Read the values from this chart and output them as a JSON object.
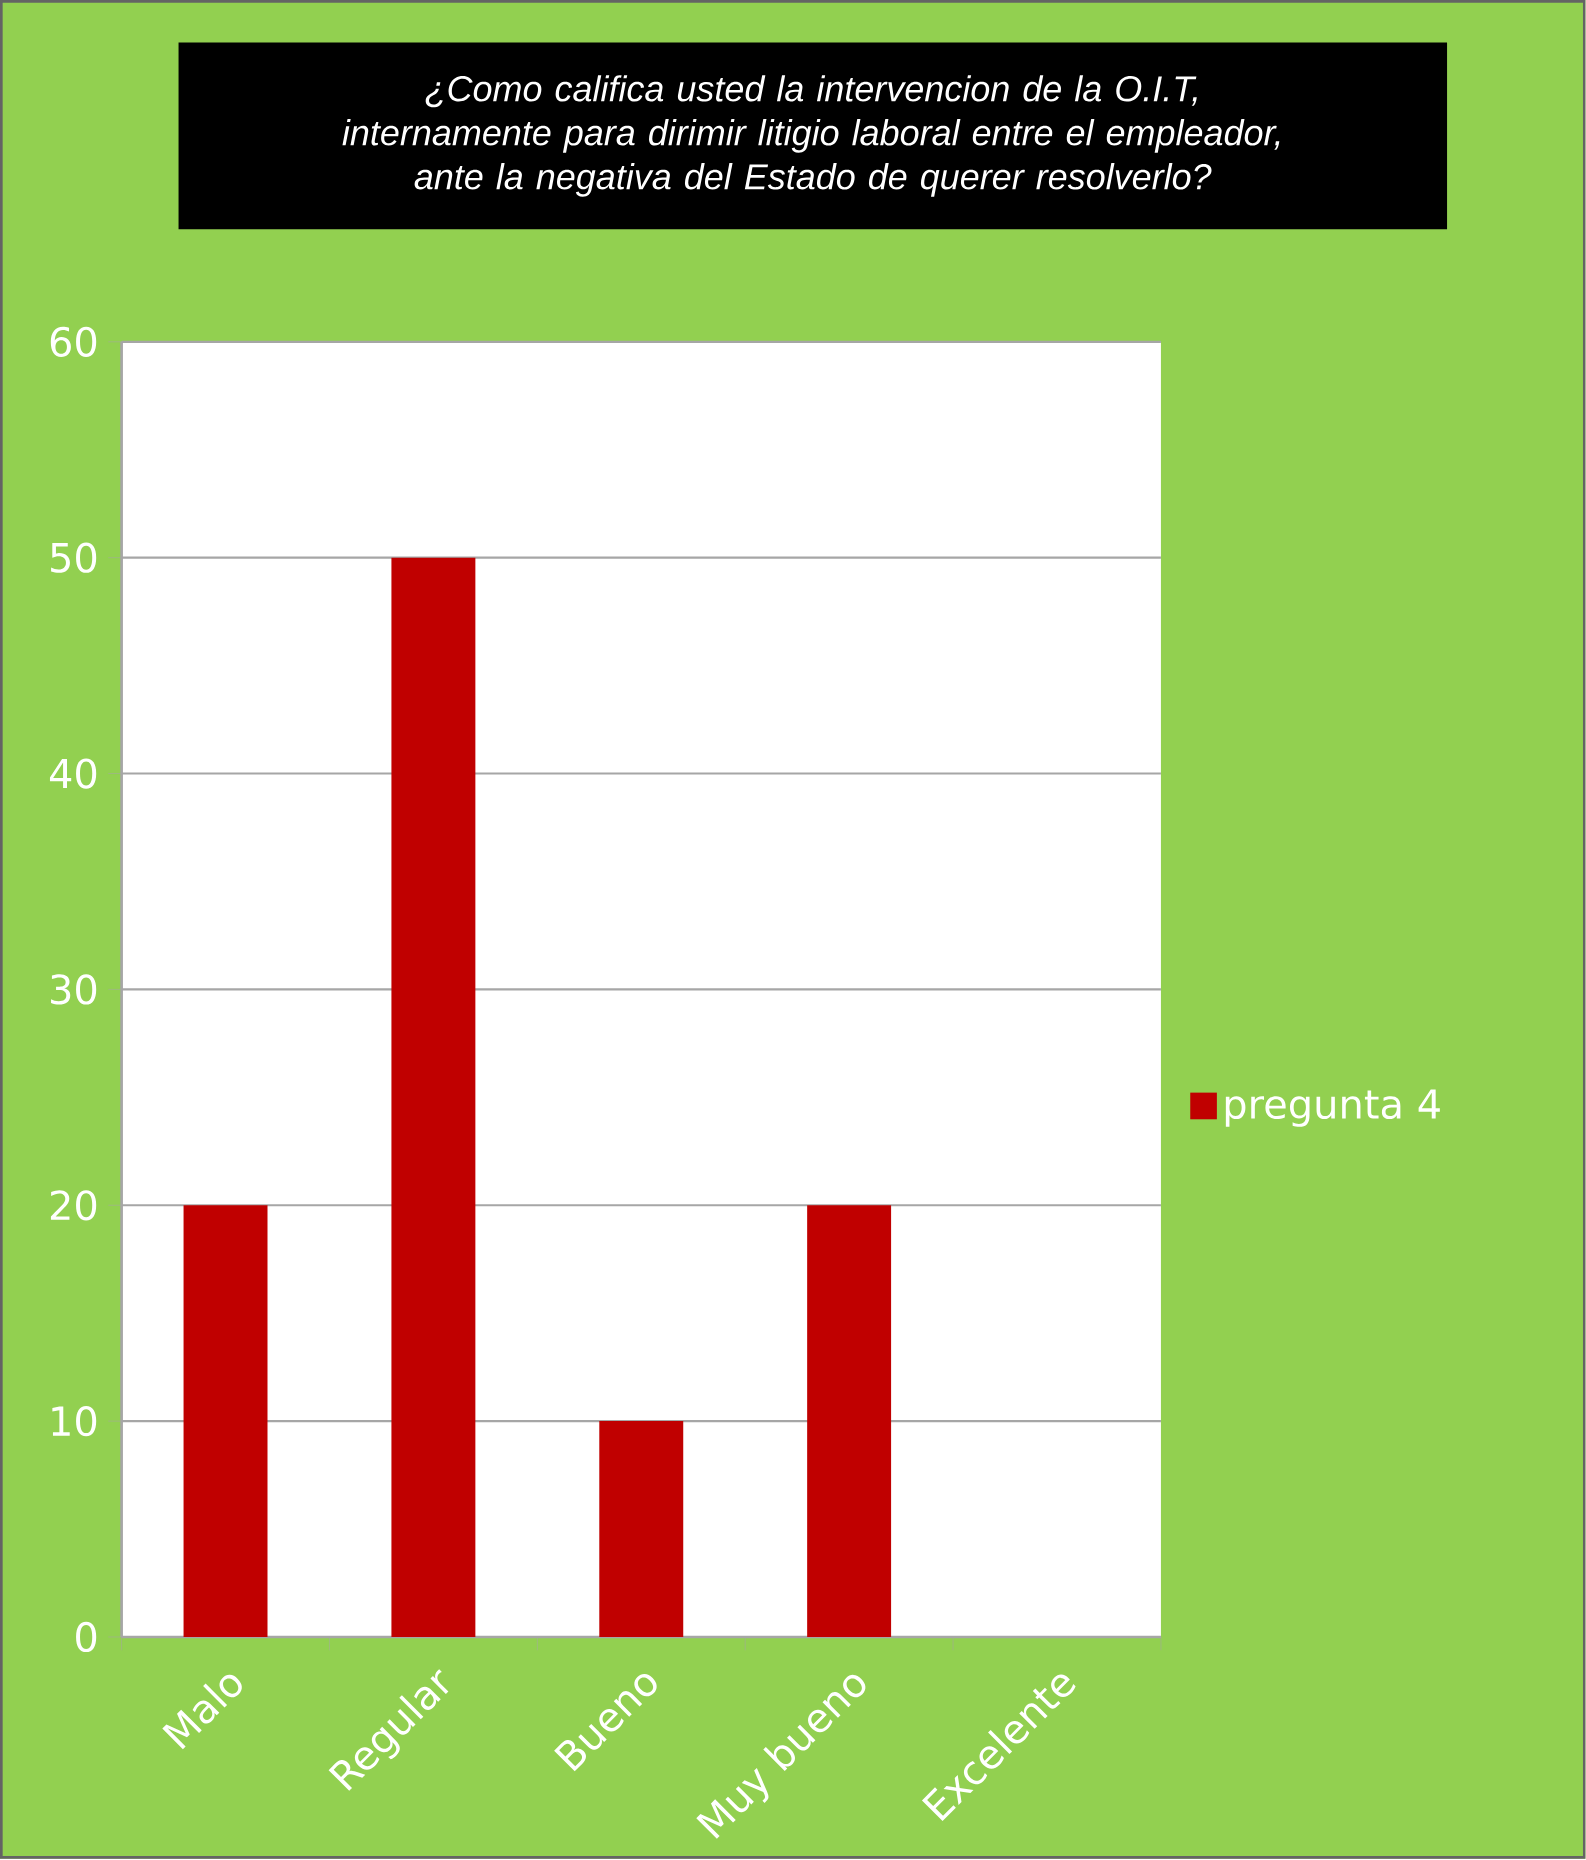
{
  "chart_data": {
    "type": "bar",
    "title": "¿Como califica usted la intervencion de la O.I.T, internamente para dirimir litigio laboral entre el empleador, ante la negativa del Estado de querer resolverlo?",
    "categories": [
      "Malo",
      "Regular",
      "Bueno",
      "Muy bueno",
      "Excelente"
    ],
    "series": [
      {
        "name": "pregunta 4",
        "color": "#c00000",
        "values": [
          20,
          50,
          10,
          20,
          0
        ]
      }
    ],
    "ylim": [
      0,
      60
    ],
    "yticks": [
      0,
      10,
      20,
      30,
      40,
      50,
      60
    ],
    "grid": "y",
    "legend": "right"
  }
}
